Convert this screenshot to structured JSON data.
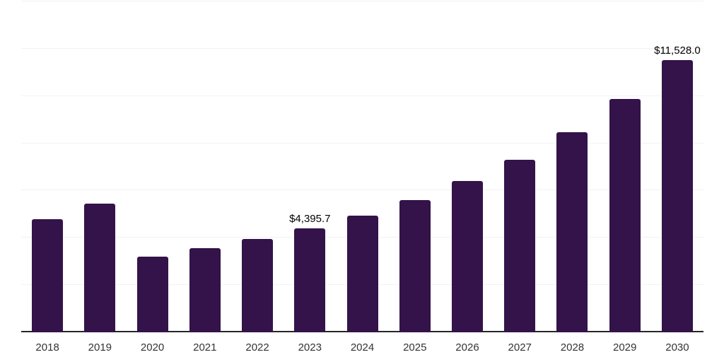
{
  "chart_data": {
    "type": "bar",
    "categories": [
      "2018",
      "2019",
      "2020",
      "2021",
      "2022",
      "2023",
      "2024",
      "2025",
      "2026",
      "2027",
      "2028",
      "2029",
      "2030"
    ],
    "values": [
      4780,
      5440,
      3200,
      3550,
      3945,
      4395.7,
      4950,
      5580,
      6400,
      7300,
      8465,
      9860,
      11528.0
    ],
    "data_labels": {
      "2023": "$4,395.7",
      "2030": "$11,528.0"
    },
    "ylim": [
      0,
      14000
    ],
    "gridline_interval": 2000,
    "grid": true,
    "legend": "none",
    "colors": {
      "bar": "#331349",
      "axis_line": "#262626",
      "gridline": "#f2f2f2",
      "tick_label": "#333333",
      "data_label": "#000000",
      "background": "#ffffff"
    }
  }
}
